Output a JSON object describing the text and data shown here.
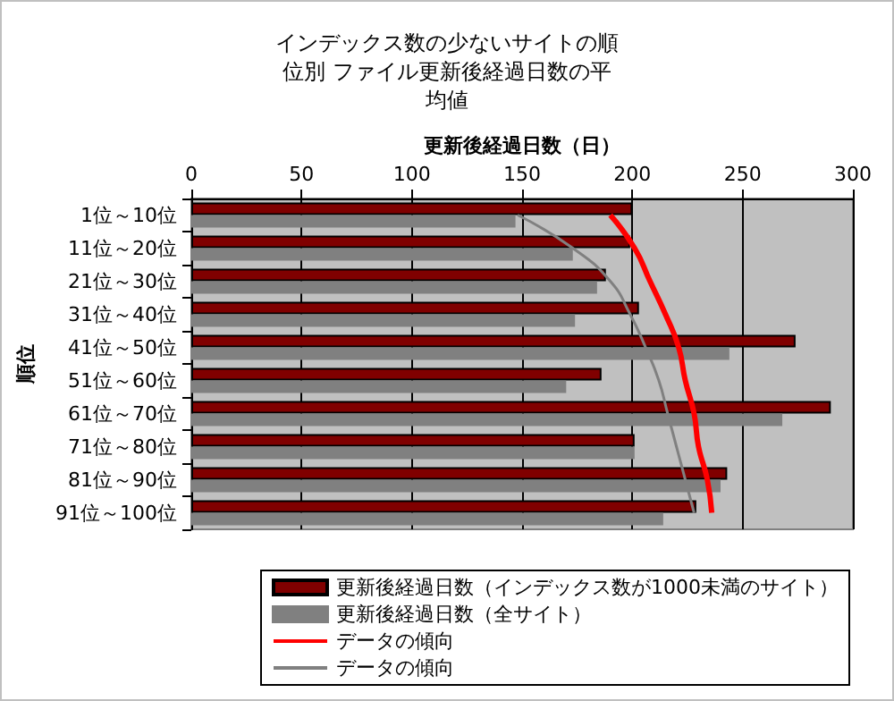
{
  "chart_data": {
    "type": "bar",
    "orientation": "horizontal",
    "title": "インデックス数の少ないサイトの順位別 ファイル更新後経過日数の平均値",
    "xlabel": "更新後経過日数（日）",
    "ylabel": "順位",
    "categories": [
      "1位～10位",
      "11位～20位",
      "21位～30位",
      "31位～40位",
      "41位～50位",
      "51位～60位",
      "61位～70位",
      "71位～80位",
      "81位～90位",
      "91位～100位"
    ],
    "series": [
      {
        "name": "更新後経過日数（インデックス数が1000未満のサイト）",
        "color": "#800000",
        "values": [
          200,
          199,
          188,
          203,
          274,
          186,
          290,
          201,
          243,
          229
        ]
      },
      {
        "name": "更新後経過日数（全サイト）",
        "color": "#808080",
        "values": [
          147,
          173,
          184,
          174,
          244,
          170,
          268,
          201,
          240,
          214
        ]
      },
      {
        "name": "データの傾向",
        "type": "line",
        "color": "#ff0000",
        "values": [
          190,
          201,
          208,
          215,
          221,
          224,
          228,
          230,
          234,
          236
        ]
      },
      {
        "name": "データの傾向",
        "type": "line",
        "color": "#808080",
        "values": [
          148,
          173,
          190,
          199,
          206,
          212,
          216,
          220,
          224,
          228
        ]
      }
    ],
    "xlim": [
      0,
      300
    ],
    "xticks": [
      0,
      50,
      100,
      150,
      200,
      250,
      300
    ],
    "grid": "x",
    "legend": "bottom",
    "marker": "none"
  }
}
